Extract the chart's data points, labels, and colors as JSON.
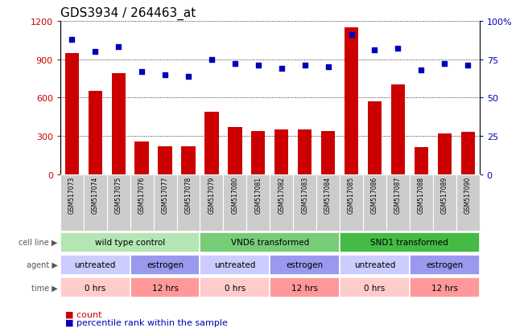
{
  "title": "GDS3934 / 264463_at",
  "samples": [
    "GSM517073",
    "GSM517074",
    "GSM517075",
    "GSM517076",
    "GSM517077",
    "GSM517078",
    "GSM517079",
    "GSM517080",
    "GSM517081",
    "GSM517082",
    "GSM517083",
    "GSM517084",
    "GSM517085",
    "GSM517086",
    "GSM517087",
    "GSM517088",
    "GSM517089",
    "GSM517090"
  ],
  "counts": [
    950,
    650,
    790,
    255,
    220,
    220,
    490,
    370,
    340,
    350,
    350,
    340,
    1150,
    570,
    700,
    215,
    320,
    330
  ],
  "percentiles": [
    88,
    80,
    83,
    67,
    65,
    64,
    75,
    72,
    71,
    69,
    71,
    70,
    91,
    81,
    82,
    68,
    72,
    71
  ],
  "bar_color": "#cc0000",
  "dot_color": "#0000bb",
  "ylim_left": [
    0,
    1200
  ],
  "ylim_right": [
    0,
    100
  ],
  "yticks_left": [
    0,
    300,
    600,
    900,
    1200
  ],
  "yticks_right": [
    0,
    25,
    50,
    75,
    100
  ],
  "yticklabels_right": [
    "0",
    "25",
    "50",
    "75",
    "100%"
  ],
  "cell_line_groups": [
    {
      "label": "wild type control",
      "start": 0,
      "end": 6,
      "color": "#b3e6b3"
    },
    {
      "label": "VND6 transformed",
      "start": 6,
      "end": 12,
      "color": "#77cc77"
    },
    {
      "label": "SND1 transformed",
      "start": 12,
      "end": 18,
      "color": "#44bb44"
    }
  ],
  "agent_groups": [
    {
      "label": "untreated",
      "start": 0,
      "end": 3,
      "color": "#ccccff"
    },
    {
      "label": "estrogen",
      "start": 3,
      "end": 6,
      "color": "#9999ee"
    },
    {
      "label": "untreated",
      "start": 6,
      "end": 9,
      "color": "#ccccff"
    },
    {
      "label": "estrogen",
      "start": 9,
      "end": 12,
      "color": "#9999ee"
    },
    {
      "label": "untreated",
      "start": 12,
      "end": 15,
      "color": "#ccccff"
    },
    {
      "label": "estrogen",
      "start": 15,
      "end": 18,
      "color": "#9999ee"
    }
  ],
  "time_groups": [
    {
      "label": "0 hrs",
      "start": 0,
      "end": 3,
      "color": "#ffcccc"
    },
    {
      "label": "12 hrs",
      "start": 3,
      "end": 6,
      "color": "#ff9999"
    },
    {
      "label": "0 hrs",
      "start": 6,
      "end": 9,
      "color": "#ffcccc"
    },
    {
      "label": "12 hrs",
      "start": 9,
      "end": 12,
      "color": "#ff9999"
    },
    {
      "label": "0 hrs",
      "start": 12,
      "end": 15,
      "color": "#ffcccc"
    },
    {
      "label": "12 hrs",
      "start": 15,
      "end": 18,
      "color": "#ff9999"
    }
  ],
  "row_labels": [
    "cell line",
    "agent",
    "time"
  ],
  "row_label_color": "#555555",
  "sample_bg_color": "#cccccc",
  "bg_color": "#ffffff",
  "title_fontsize": 11,
  "axis_fontsize": 8,
  "sample_fontsize": 5.5,
  "row_fontsize": 7.5,
  "legend_fontsize": 8
}
